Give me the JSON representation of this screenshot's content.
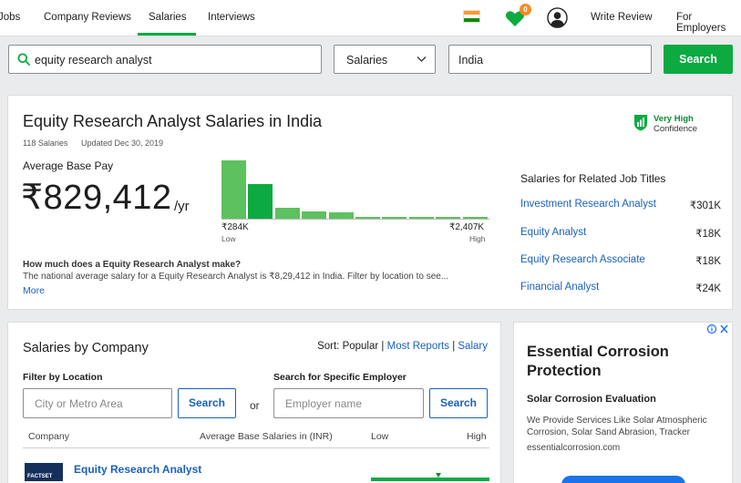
{
  "nav": {
    "jobs": "Jobs",
    "company_reviews": "Company Reviews",
    "salaries": "Salaries",
    "interviews": "Interviews",
    "notification_count": "0",
    "write_review": "Write Review",
    "for_employers": "For Employers"
  },
  "search": {
    "keyword": "equity research analyst",
    "category": "Salaries",
    "location": "India",
    "button": "Search"
  },
  "summary": {
    "title": "Equity Research Analyst Salaries in India",
    "salary_count": "118 Salaries",
    "updated": "Updated Dec 30, 2019",
    "confidence_level": "Very High",
    "confidence_label": "Confidence",
    "avg_label": "Average Base Pay",
    "avg_pay": "₹829,412",
    "per": "/yr",
    "low_value": "₹284K",
    "low_label": "Low",
    "high_value": "₹2,407K",
    "high_label": "High",
    "question": "How much does a Equity Research Analyst make?",
    "answer": "The national average salary for a Equity Research Analyst is ₹8,29,412 in India. Filter by location to see...",
    "more": "More"
  },
  "histogram": {
    "values": [
      1.0,
      0.6,
      0.19,
      0.13,
      0.11,
      0.03,
      0.03,
      0.03,
      0.03,
      0.03
    ],
    "colors": [
      "#5cc15e",
      "#0caa41",
      "#5cc15e",
      "#5cc15e",
      "#5cc15e",
      "#5cc15e",
      "#5cc15e",
      "#5cc15e",
      "#5cc15e",
      "#5cc15e"
    ]
  },
  "related": {
    "heading": "Salaries for Related Job Titles",
    "items": [
      {
        "title": "Investment Research Analyst",
        "value": "₹301K"
      },
      {
        "title": "Equity Analyst",
        "value": "₹18K"
      },
      {
        "title": "Equity Research Associate",
        "value": "₹18K"
      },
      {
        "title": "Financial Analyst",
        "value": "₹24K"
      }
    ]
  },
  "company": {
    "title": "Salaries by Company",
    "sort_label": "Sort:",
    "sort_popular": "Popular",
    "sort_recent": "Most Reports",
    "sort_salary": "Salary",
    "filter_label": "Filter by Location",
    "location_placeholder": "City or Metro Area",
    "search_button": "Search",
    "or": "or",
    "employer_label": "Search for Specific Employer",
    "employer_placeholder": "Employer name",
    "col_company": "Company",
    "col_avg": "Average Base Salaries in (INR)",
    "col_low": "Low",
    "col_high": "High",
    "logo_text": "FACTSET",
    "row_title": "Equity Research Analyst"
  },
  "ad": {
    "title": "Essential Corrosion Protection",
    "subtitle": "Solar Corrosion Evaluation",
    "body": "We Provide Services Like Solar Atmospheric Corrosion, Solar Sand Abrasion, Tracker",
    "url": "essentialcorrosion.com"
  }
}
